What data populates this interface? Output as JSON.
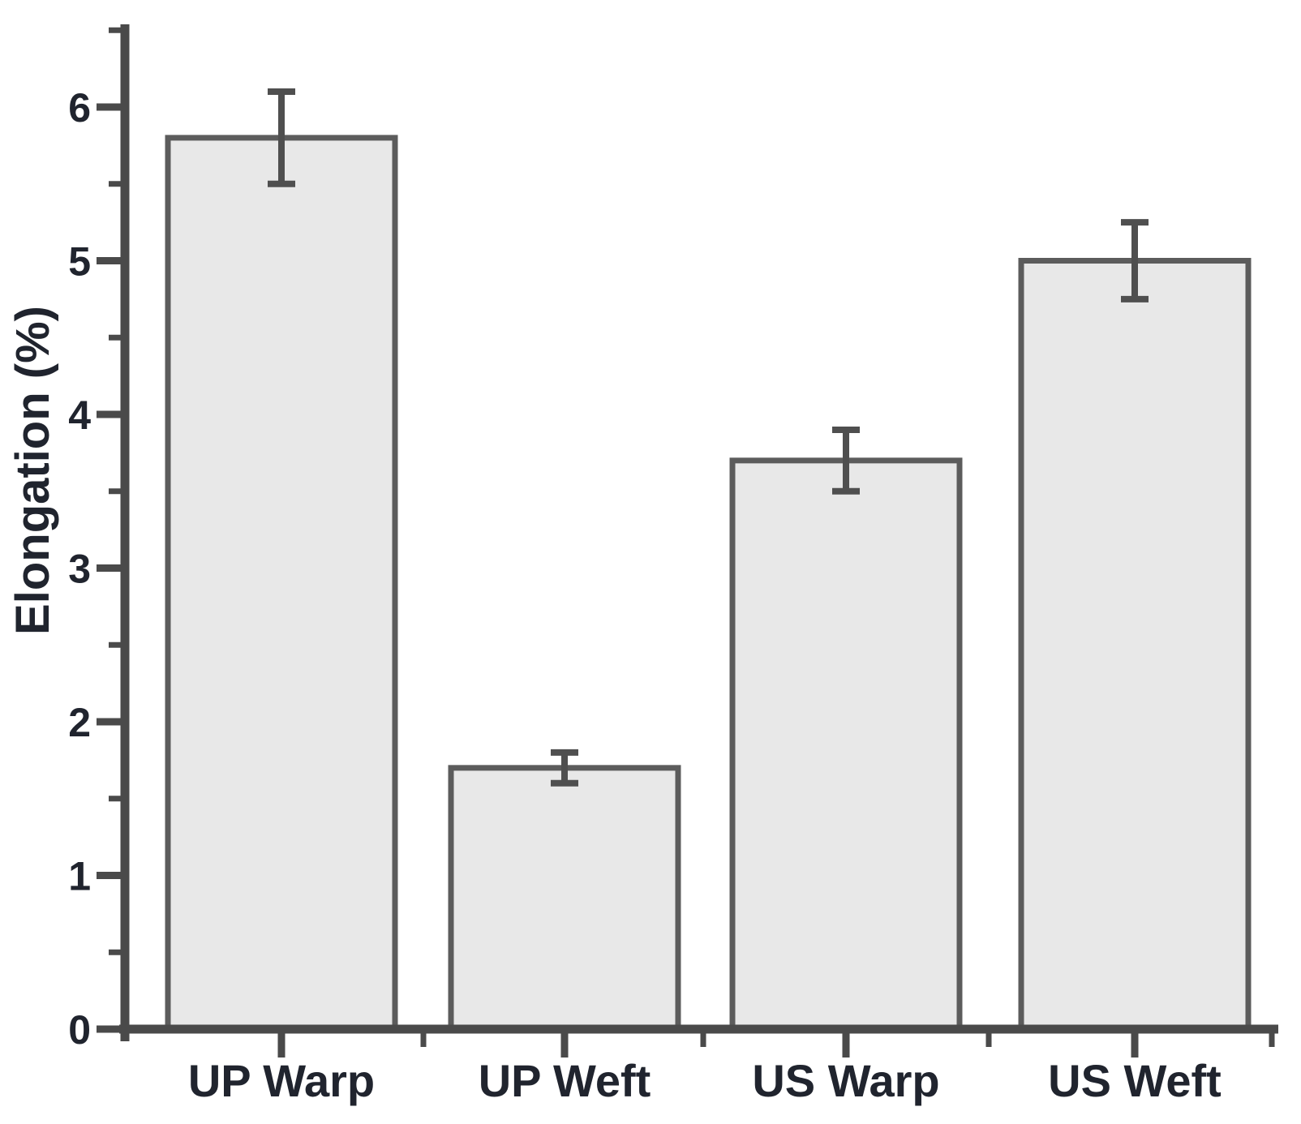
{
  "figure": {
    "background": "#ffffff"
  },
  "chart_data": {
    "type": "bar",
    "title": "",
    "xlabel": "",
    "ylabel": "Elongation (%)",
    "categories": [
      "UP Warp",
      "UP Weft",
      "US Warp",
      "US Weft"
    ],
    "values": [
      5.8,
      1.7,
      3.7,
      5.0
    ],
    "error_bars": [
      0.3,
      0.1,
      0.2,
      0.25
    ],
    "ylim": [
      0,
      6.5
    ],
    "yticks": [
      0,
      1,
      2,
      3,
      4,
      5,
      6
    ],
    "y_minor_tick_step": 0.5,
    "grid": false,
    "legend": false,
    "colors": {
      "bar_fill": "#e8e8e8",
      "bar_border": "#5c5c5c",
      "axis": "#4a4a4a",
      "error_bar": "#4f4f4f",
      "text": "#20242e"
    }
  }
}
